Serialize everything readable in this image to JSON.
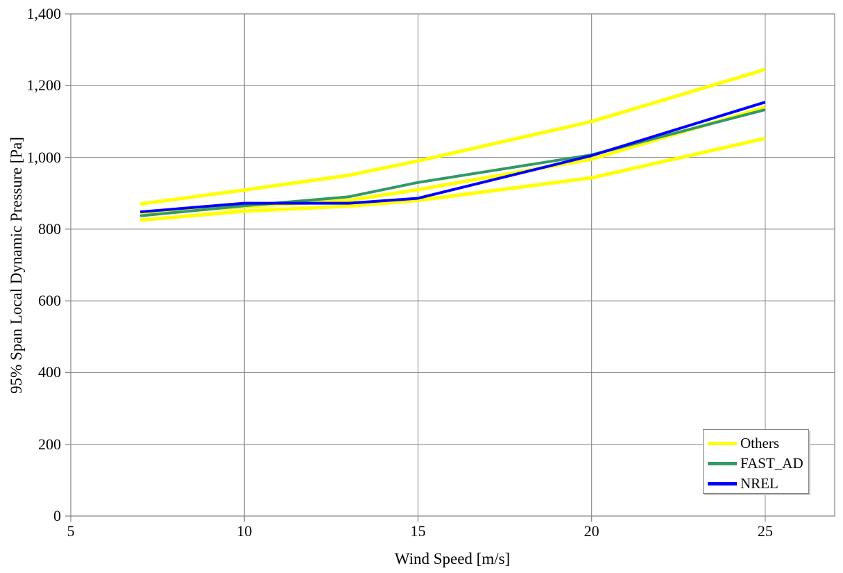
{
  "chart_data": {
    "type": "line",
    "title": "",
    "xlabel": "Wind Speed [m/s]",
    "ylabel": "95% Span Local Dynamic Pressure [Pa]",
    "x": [
      7,
      10,
      13,
      15,
      20,
      25
    ],
    "series": [
      {
        "name": "Others (upper envelope)",
        "legend_label": "Others",
        "color": "#FFFF00",
        "width": 5,
        "values": [
          870,
          909,
          950,
          990,
          1100,
          1245
        ]
      },
      {
        "name": "Others (middle)",
        "legend_label": null,
        "color": "#FFFF00",
        "width": 5,
        "values": [
          843,
          862,
          880,
          910,
          995,
          1140
        ]
      },
      {
        "name": "Others (lower envelope)",
        "legend_label": null,
        "color": "#FFFF00",
        "width": 5,
        "values": [
          825,
          850,
          864,
          880,
          943,
          1053
        ]
      },
      {
        "name": "FAST_AD",
        "legend_label": "FAST_AD",
        "color": "#339966",
        "width": 4,
        "values": [
          837,
          865,
          890,
          930,
          1007,
          1133
        ]
      },
      {
        "name": "NREL",
        "legend_label": "NREL",
        "color": "#0000FF",
        "width": 4,
        "values": [
          848,
          872,
          872,
          886,
          1005,
          1154
        ]
      }
    ],
    "legend_entries": [
      {
        "label": "Others",
        "color": "#FFFF00"
      },
      {
        "label": "FAST_AD",
        "color": "#339966"
      },
      {
        "label": "NREL",
        "color": "#0000FF"
      }
    ],
    "legend_position": "lower-right",
    "xlim": [
      5,
      27
    ],
    "ylim": [
      0,
      1400
    ],
    "xticks": [
      5,
      10,
      15,
      20,
      25
    ],
    "xtick_labels": [
      "5",
      "10",
      "15",
      "20",
      "25"
    ],
    "yticks": [
      0,
      200,
      400,
      600,
      800,
      1000,
      1200,
      1400
    ],
    "ytick_labels": [
      "0",
      "200",
      "400",
      "600",
      "800",
      "1,000",
      "1,200",
      "1,400"
    ],
    "grid": true,
    "gridlines_x_at": [
      10,
      15,
      20,
      25
    ],
    "gridlines_y_at": [
      200,
      400,
      600,
      800,
      1000,
      1200
    ]
  },
  "colors": {
    "background": "#FFFFFF",
    "grid": "#808080",
    "axis": "#808080",
    "text": "#000000"
  }
}
